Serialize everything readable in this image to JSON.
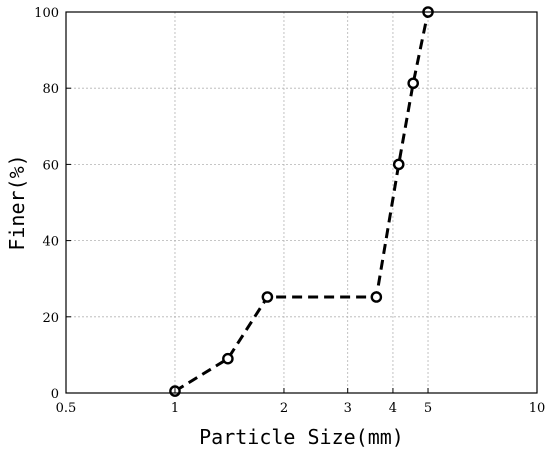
{
  "chart_data": {
    "type": "line",
    "title": "",
    "xlabel": "Particle Size(mm)",
    "ylabel": "Finer(%)",
    "x_scale": "log",
    "xlim": [
      0.5,
      10
    ],
    "ylim": [
      0,
      100
    ],
    "x_ticks": [
      0.5,
      1,
      2,
      3,
      4,
      5,
      10
    ],
    "x_tick_labels": [
      "0.5",
      "1",
      "2",
      "3",
      "4",
      "5",
      "10"
    ],
    "y_ticks": [
      0,
      20,
      40,
      60,
      80,
      100
    ],
    "y_tick_labels": [
      "0",
      "20",
      "40",
      "60",
      "80",
      "100"
    ],
    "grid": true,
    "series": [
      {
        "line_style": "dashed",
        "marker": "open-circle",
        "color": "#000000",
        "x": [
          1.0,
          1.4,
          1.8,
          3.6,
          4.15,
          4.55,
          5.0
        ],
        "y": [
          0.5,
          9.0,
          25.2,
          25.2,
          60.0,
          81.3,
          100.0
        ]
      }
    ]
  }
}
